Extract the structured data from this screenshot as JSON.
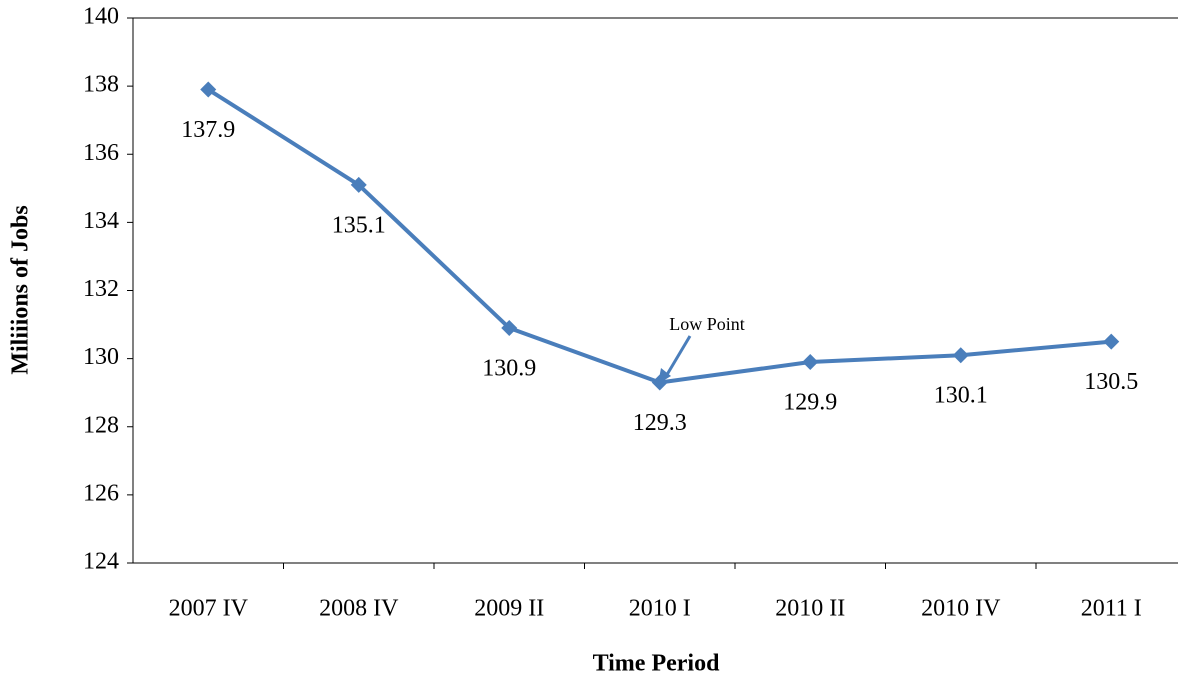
{
  "chart_data": {
    "type": "line",
    "x_label": "Time Period",
    "y_label": "Miliiions of Jobs",
    "annotation": "Low Point",
    "categories": [
      "2007 IV",
      "2008 IV",
      "2009 II",
      "2010 I",
      "2010 II",
      "2010 IV",
      "2011 I"
    ],
    "series": [
      {
        "name": "Jobs",
        "color": "#4a7ebb",
        "values": [
          137.9,
          135.1,
          130.9,
          129.3,
          129.9,
          130.1,
          130.5
        ]
      }
    ],
    "ylim": [
      124,
      140
    ],
    "yticks": [
      124,
      126,
      128,
      130,
      132,
      134,
      136,
      138,
      140
    ]
  }
}
